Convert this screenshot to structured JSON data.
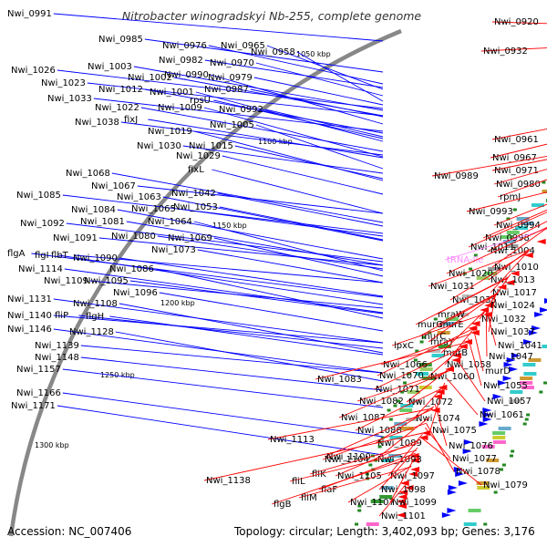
{
  "title": "Nitrobacter winogradskyi Nb-255, complete genome",
  "footer": {
    "accession_label": "Accession:",
    "accession": "NC_007406",
    "topology_label": "Topology:",
    "topology": "circular",
    "length_label": "Length:",
    "length": "3,402,093 bp",
    "genes_label": "Genes:",
    "genes": "3,176"
  },
  "colors": {
    "forward": "#0000ff",
    "reverse": "#ff0000",
    "rna": "#ff88ff",
    "backbone": "#888888",
    "label_text": "#000000"
  },
  "kbp_ticks": [
    "1050 kbp",
    "1100 kbp",
    "1150 kbp",
    "1200 kbp",
    "1250 kbp",
    "1300 kbp"
  ],
  "labels_left": [
    "Nwi_0991",
    "Nwi_0985",
    "Nwi_0976",
    "Nwi_0965",
    "Nwi_0958",
    "Nwi_0982",
    "Nwi_0970",
    "Nwi_1026",
    "Nwi_1003",
    "Nwi_0990",
    "Nwi_0979",
    "Nwi_1023",
    "Nwi_1002",
    "Nwi_1012",
    "Nwi_1001",
    "Nwi_0987",
    "Nwi_1033",
    "rpsU",
    "Nwi_1022",
    "Nwi_1009",
    "Nwi_0992",
    "Nwi_1038",
    "fixJ",
    "Nwi_1005",
    "Nwi_1019",
    "Nwi_1030",
    "Nwi_1015",
    "Nwi_1029",
    "fixL",
    "Nwi_1068",
    "Nwi_1067",
    "Nwi_1042",
    "Nwi_1085",
    "Nwi_1063",
    "Nwi_1084",
    "Nwi_1065",
    "Nwi_1053",
    "Nwi_1092",
    "Nwi_1081",
    "Nwi_1064",
    "Nwi_1091",
    "Nwi_1080",
    "Nwi_1069",
    "flgA",
    "flgI",
    "flbT",
    "Nwi_1073",
    "Nwi_1090",
    "Nwi_1114",
    "Nwi_1086",
    "Nwi_1109",
    "Nwi_1095",
    "Nwi_1096",
    "Nwi_1131",
    "Nwi_1108",
    "Nwi_1140",
    "fliP",
    "flgH",
    "Nwi_1146",
    "Nwi_1128",
    "Nwi_1139",
    "Nwi_1148",
    "Nwi_1157",
    "Nwi_1166",
    "Nwi_1171"
  ],
  "labels_right": [
    "Nwi_0920",
    "Nwi_0932",
    "Nwi_0961",
    "Nwi_0967",
    "Nwi_0971",
    "Nwi_0989",
    "Nwi_0980",
    "rpmJ",
    "Nwi_0993",
    "Nwi_0994",
    "Nwi_0998",
    "Nwi_1011",
    "tRNA-Ile",
    "Nwi_1004",
    "Nwi_1010",
    "Nwi_1020",
    "Nwi_1013",
    "Nwi_1031",
    "Nwi_1017",
    "Nwi_1035",
    "Nwi_1024",
    "mraW",
    "Nwi_1032",
    "murG",
    "murE",
    "Nwi_1037",
    "murC",
    "mraY",
    "lpxC",
    "Nwi_1041",
    "murB",
    "Nwi_1047",
    "Nwi_1066",
    "Nwi_1058",
    "murD",
    "Nwi_1070",
    "Nwi_1060",
    "Nwi_1083",
    "Nwi_1071",
    "Nwi_1055",
    "Nwi_1082",
    "Nwi_1072",
    "Nwi_1057",
    "Nwi_1087",
    "Nwi_1074",
    "Nwi_1061",
    "Nwi_1088",
    "Nwi_1075",
    "Nwi_1113",
    "Nwi_1089",
    "Nwi_1076",
    "Nwi_1100",
    "Nwi_1077",
    "Nwi_1104",
    "Nwi_1093",
    "Nwi_1078",
    "fliK",
    "Nwi_1105",
    "Nwi_1097",
    "Nwi_1138",
    "fliL",
    "flaF",
    "Nwi_1098",
    "Nwi_1079",
    "fliM",
    "Nwi_1107",
    "Nwi_1099",
    "flgB",
    "Nwi_1101"
  ]
}
